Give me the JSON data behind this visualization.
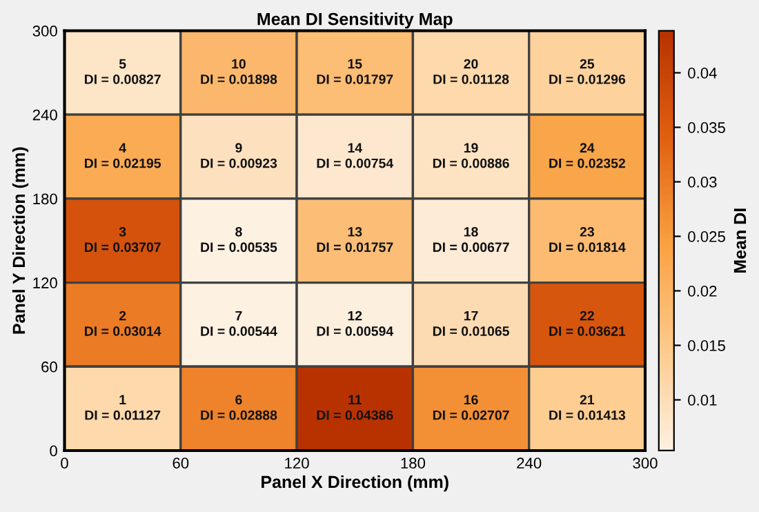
{
  "chart_data": {
    "type": "heatmap",
    "title": "Mean DI Sensitivity Map",
    "xlabel": "Panel X Direction (mm)",
    "ylabel": "Panel Y Direction (mm)",
    "clabel": "Mean DI",
    "xlim": [
      0,
      300
    ],
    "xticks": [
      0,
      60,
      120,
      180,
      240,
      300
    ],
    "ylim": [
      0,
      300
    ],
    "yticks": [
      0,
      60,
      120,
      180,
      240,
      300
    ],
    "cells": [
      [
        0.00827,
        0.01898,
        0.01797,
        0.01128,
        0.01296
      ],
      [
        0.02195,
        0.00923,
        0.00754,
        0.00886,
        0.02352
      ],
      [
        0.03707,
        0.00535,
        0.01757,
        0.00677,
        0.01814
      ],
      [
        0.03014,
        0.00544,
        0.00594,
        0.01065,
        0.03621
      ],
      [
        0.01127,
        0.02888,
        0.04386,
        0.02707,
        0.01413
      ]
    ],
    "cell_labels": [
      [
        "5\nDI = 0.00827",
        "10\nDI = 0.01898",
        "15\nDI = 0.01797",
        "20\nDI = 0.01128",
        "25\nDI = 0.01296"
      ],
      [
        "4\nDI = 0.02195",
        "9\nDI = 0.00923",
        "14\nDI = 0.00754",
        "19\nDI = 0.00886",
        "24\nDI = 0.02352"
      ],
      [
        "3\nDI = 0.03707",
        "8\nDI = 0.00535",
        "13\nDI = 0.01757",
        "18\nDI = 0.00677",
        "23\nDI = 0.01814"
      ],
      [
        "2\nDI = 0.03014",
        "7\nDI = 0.00544",
        "12\nDI = 0.00594",
        "17\nDI = 0.01065",
        "22\nDI = 0.03621"
      ],
      [
        "1\nDI = 0.01127",
        "6\nDI = 0.02888",
        "11\nDI = 0.04386",
        "16\nDI = 0.02707",
        "21\nDI = 0.01413"
      ]
    ],
    "clim": [
      0.00535,
      0.04386
    ],
    "cticks": [
      0.01,
      0.015,
      0.02,
      0.025,
      0.03,
      0.035,
      0.04
    ],
    "colors": [
      "#fdf1e2",
      "#fdc98a",
      "#f9a040",
      "#e06010",
      "#b83200"
    ]
  }
}
